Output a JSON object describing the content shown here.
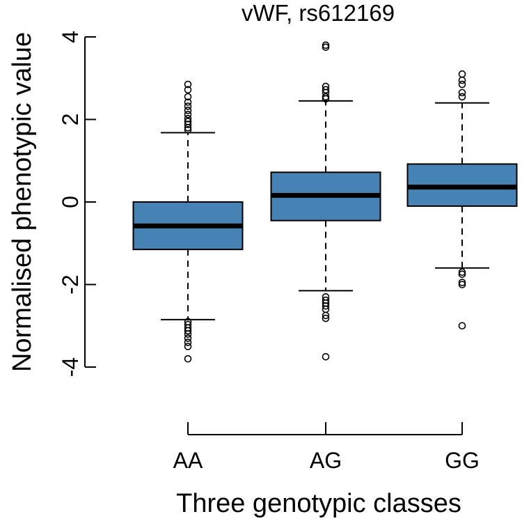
{
  "chart_data": {
    "type": "boxplot",
    "title": "vWF, rs612169",
    "xlabel": "Three genotypic classes",
    "ylabel": "Normalised phenotypic value",
    "categories": [
      "AA",
      "AG",
      "GG"
    ],
    "ylim": [
      -4,
      4
    ],
    "yticks": [
      4,
      2,
      0,
      -2,
      -4
    ],
    "ytick_labels": [
      "4",
      "2",
      "0",
      "-2",
      "-4"
    ],
    "box_color": "#4682b4",
    "grid": false,
    "boxes": [
      {
        "name": "AA",
        "whisker_low": -2.85,
        "q1": -1.15,
        "median": -0.58,
        "q3": 0.0,
        "whisker_high": 1.68,
        "outliers": [
          2.85,
          2.72,
          2.55,
          2.42,
          2.32,
          2.22,
          2.12,
          2.02,
          1.95,
          1.88,
          1.8,
          1.75,
          -2.9,
          -2.97,
          -3.05,
          -3.12,
          -3.2,
          -3.3,
          -3.4,
          -3.5,
          -3.8
        ]
      },
      {
        "name": "AG",
        "whisker_low": -2.15,
        "q1": -0.45,
        "median": 0.16,
        "q3": 0.72,
        "whisker_high": 2.45,
        "outliers": [
          3.8,
          3.75,
          2.8,
          2.72,
          2.65,
          2.55,
          2.5,
          -2.3,
          -2.38,
          -2.45,
          -2.52,
          -2.6,
          -2.75,
          -2.82,
          -3.75
        ]
      },
      {
        "name": "GG",
        "whisker_low": -1.6,
        "q1": -0.1,
        "median": 0.36,
        "q3": 0.92,
        "whisker_high": 2.4,
        "outliers": [
          3.1,
          2.95,
          2.85,
          2.65,
          2.55,
          -1.7,
          -1.75,
          -1.95,
          -2.0,
          -3.0
        ]
      }
    ]
  }
}
